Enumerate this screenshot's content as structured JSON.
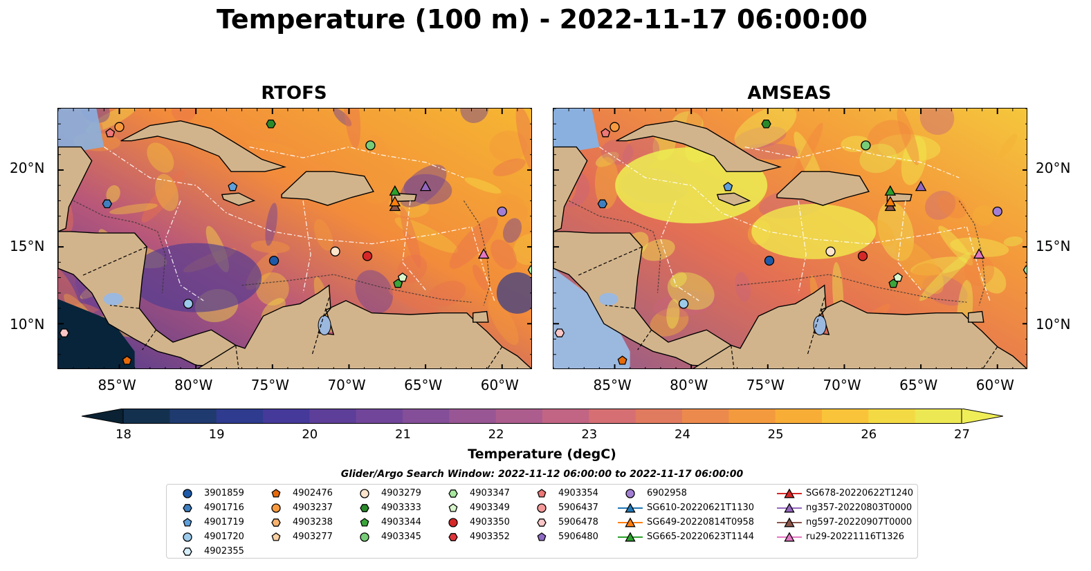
{
  "title": "Temperature (100 m) - 2022-11-17 06:00:00",
  "panels": [
    {
      "name": "RTOFS"
    },
    {
      "name": "AMSEAS"
    }
  ],
  "map_extent": {
    "lon": [
      -89,
      -58
    ],
    "lat": [
      7,
      24
    ]
  },
  "x_ticks": [
    "85°W",
    "80°W",
    "75°W",
    "70°W",
    "65°W",
    "60°W"
  ],
  "y_ticks": [
    "20°N",
    "15°N",
    "10°N"
  ],
  "colorbar": {
    "label": "Temperature (degC)",
    "ticks": [
      "18",
      "19",
      "20",
      "21",
      "22",
      "23",
      "24",
      "25",
      "26",
      "27"
    ],
    "min": 18,
    "max": 27,
    "extend": "both"
  },
  "colors": {
    "land": "#d2b48c",
    "ocean_outside": "#9bb8df",
    "cold": "#0d2740",
    "warm": "#f3e950"
  },
  "search_window": "Glider/Argo Search Window: 2022-11-12 06:00:00 to 2022-11-17 06:00:00",
  "legend": [
    {
      "label": "3901859",
      "marker": "circle",
      "color": "#1f5aa8"
    },
    {
      "label": "4901716",
      "marker": "hexagon",
      "color": "#3f7fc0"
    },
    {
      "label": "4901719",
      "marker": "pentagon",
      "color": "#5f9fdb"
    },
    {
      "label": "4901720",
      "marker": "circle",
      "color": "#9ccaea"
    },
    {
      "label": "4902355",
      "marker": "hexagon",
      "color": "#d6eefa"
    },
    {
      "label": "4902476",
      "marker": "pentagon",
      "color": "#e66a0a"
    },
    {
      "label": "4903237",
      "marker": "circle",
      "color": "#f79a3f"
    },
    {
      "label": "4903238",
      "marker": "hexagon",
      "color": "#f9b36f"
    },
    {
      "label": "4903277",
      "marker": "pentagon",
      "color": "#fbd0a5"
    },
    {
      "label": "4903279",
      "marker": "circle",
      "color": "#fde5cc"
    },
    {
      "label": "4903333",
      "marker": "hexagon",
      "color": "#2a8a2a"
    },
    {
      "label": "4903344",
      "marker": "pentagon",
      "color": "#3aa53a"
    },
    {
      "label": "4903345",
      "marker": "circle",
      "color": "#77cc77"
    },
    {
      "label": "4903347",
      "marker": "hexagon",
      "color": "#a8e8a0"
    },
    {
      "label": "4903349",
      "marker": "pentagon",
      "color": "#d8f6cc"
    },
    {
      "label": "4903350",
      "marker": "circle",
      "color": "#d62728"
    },
    {
      "label": "4903352",
      "marker": "hexagon",
      "color": "#e0353a"
    },
    {
      "label": "4903354",
      "marker": "pentagon",
      "color": "#ee7777"
    },
    {
      "label": "5906437",
      "marker": "circle",
      "color": "#f59a9a"
    },
    {
      "label": "5906478",
      "marker": "hexagon",
      "color": "#fbc6c6"
    },
    {
      "label": "5906480",
      "marker": "pentagon",
      "color": "#8f6ac4"
    },
    {
      "label": "6902958",
      "marker": "circle",
      "color": "#a37fd4"
    },
    {
      "label": "SG610-20220621T1130",
      "marker": "triangle",
      "color": "#1f77b4"
    },
    {
      "label": "SG649-20220814T0958",
      "marker": "triangle",
      "color": "#ff7f0e"
    },
    {
      "label": "SG665-20220623T1144",
      "marker": "triangle",
      "color": "#2ca02c"
    },
    {
      "label": "SG678-20220622T1240",
      "marker": "triangle",
      "color": "#d62728"
    },
    {
      "label": "ng357-20220803T0000",
      "marker": "triangle",
      "color": "#9467bd"
    },
    {
      "label": "ng597-20220907T0000",
      "marker": "triangle",
      "color": "#8c564b"
    },
    {
      "label": "ru29-20221116T1326",
      "marker": "triangle",
      "color": "#e377c2"
    }
  ],
  "observations": [
    {
      "id": "4903237",
      "lon": -85.0,
      "lat": 22.8
    },
    {
      "id": "4903354",
      "lon": -85.6,
      "lat": 22.4
    },
    {
      "id": "4903333",
      "lon": -75.1,
      "lat": 23.0
    },
    {
      "id": "4903345",
      "lon": -68.6,
      "lat": 21.6
    },
    {
      "id": "3901859",
      "lon": -74.9,
      "lat": 14.1
    },
    {
      "id": "4901716",
      "lon": -85.8,
      "lat": 17.8
    },
    {
      "id": "4901719",
      "lon": -77.6,
      "lat": 18.9
    },
    {
      "id": "4901720",
      "lon": -80.5,
      "lat": 11.3
    },
    {
      "id": "4903279",
      "lon": -70.9,
      "lat": 14.7
    },
    {
      "id": "4903350",
      "lon": -68.8,
      "lat": 14.4
    },
    {
      "id": "4903349",
      "lon": -66.5,
      "lat": 13.0
    },
    {
      "id": "4903344",
      "lon": -66.8,
      "lat": 12.6
    },
    {
      "id": "4903347",
      "lon": -58.0,
      "lat": 13.5
    },
    {
      "id": "6902958",
      "lon": -60.0,
      "lat": 17.3
    },
    {
      "id": "5906478",
      "lon": -88.6,
      "lat": 9.4
    },
    {
      "id": "4902476",
      "lon": -84.5,
      "lat": 7.6
    },
    {
      "id": "SG665-20220623T1144",
      "lon": -67.0,
      "lat": 18.6
    },
    {
      "id": "ng597-20220907T0000",
      "lon": -67.0,
      "lat": 17.6
    },
    {
      "id": "SG649-20220814T0958",
      "lon": -67.0,
      "lat": 17.9
    },
    {
      "id": "ng357-20220803T0000",
      "lon": -65.0,
      "lat": 18.9
    },
    {
      "id": "ru29-20221116T1326",
      "lon": -61.2,
      "lat": 14.5
    }
  ]
}
